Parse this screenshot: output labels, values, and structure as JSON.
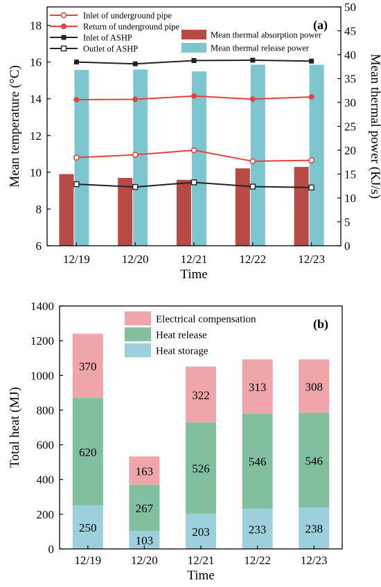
{
  "chart_data": [
    {
      "type": "bar+line",
      "panel_label": "(a)",
      "categories": [
        "12/19",
        "12/20",
        "12/21",
        "12/22",
        "12/23"
      ],
      "xlabel": "Time",
      "ylabel_left": "Mean temperature (°C)",
      "ylabel_right": "Mean thermal power (KJ/s)",
      "ylim_left": [
        6,
        19
      ],
      "ylim_right": [
        0,
        50
      ],
      "yticks_left": [
        6,
        8,
        10,
        12,
        14,
        16,
        18
      ],
      "yticks_right": [
        0,
        5,
        10,
        15,
        20,
        25,
        30,
        35,
        40,
        45,
        50
      ],
      "bar_series": [
        {
          "name": "Mean thermal absorption power",
          "color": "#b84a45",
          "values": [
            15.0,
            14.2,
            13.8,
            16.2,
            16.5
          ]
        },
        {
          "name": "Mean thermal release power",
          "color": "#7ec6cf",
          "values": [
            36.8,
            36.9,
            36.5,
            37.9,
            37.9
          ]
        }
      ],
      "line_series": [
        {
          "name": "Inlet of underground pipe",
          "color": "#e8413b",
          "marker": "open-circle",
          "values": [
            10.8,
            10.95,
            11.2,
            10.6,
            10.65
          ]
        },
        {
          "name": "Return of underground pipe",
          "color": "#e8413b",
          "marker": "filled-circle",
          "values": [
            13.95,
            13.97,
            14.15,
            13.98,
            14.1
          ]
        },
        {
          "name": "Inlet of ASHP",
          "color": "#222222",
          "marker": "filled-square",
          "values": [
            16.0,
            15.9,
            16.08,
            16.1,
            16.05
          ]
        },
        {
          "name": "Outlet of ASHP",
          "color": "#222222",
          "marker": "open-square",
          "values": [
            9.35,
            9.2,
            9.45,
            9.22,
            9.17
          ]
        }
      ],
      "grid": false,
      "legend": "top"
    },
    {
      "type": "stacked-bar",
      "panel_label": "(b)",
      "categories": [
        "12/19",
        "12/20",
        "12/21",
        "12/22",
        "12/23"
      ],
      "xlabel": "Time",
      "ylabel": "Total heat (MJ)",
      "ylim": [
        0,
        1400
      ],
      "yticks": [
        0,
        200,
        400,
        600,
        800,
        1000,
        1200,
        1400
      ],
      "series": [
        {
          "name": "Heat storage",
          "color": "#9dd0dc",
          "values": [
            250,
            103,
            203,
            233,
            238
          ],
          "labels": [
            "250",
            "103",
            "203",
            "233",
            "238"
          ]
        },
        {
          "name": "Heat release",
          "color": "#82bf9e",
          "values": [
            620,
            267,
            526,
            546,
            546
          ],
          "labels": [
            "620",
            "267",
            "526",
            "546",
            "546"
          ]
        },
        {
          "name": "Electrical compensation",
          "color": "#eea6aa",
          "values": [
            370,
            163,
            322,
            313,
            308
          ],
          "labels": [
            "370",
            "163",
            "322",
            "313",
            "308"
          ]
        }
      ],
      "legend_order": [
        "Electrical compensation",
        "Heat release",
        "Heat storage"
      ],
      "grid": false,
      "legend": "top-center"
    }
  ]
}
